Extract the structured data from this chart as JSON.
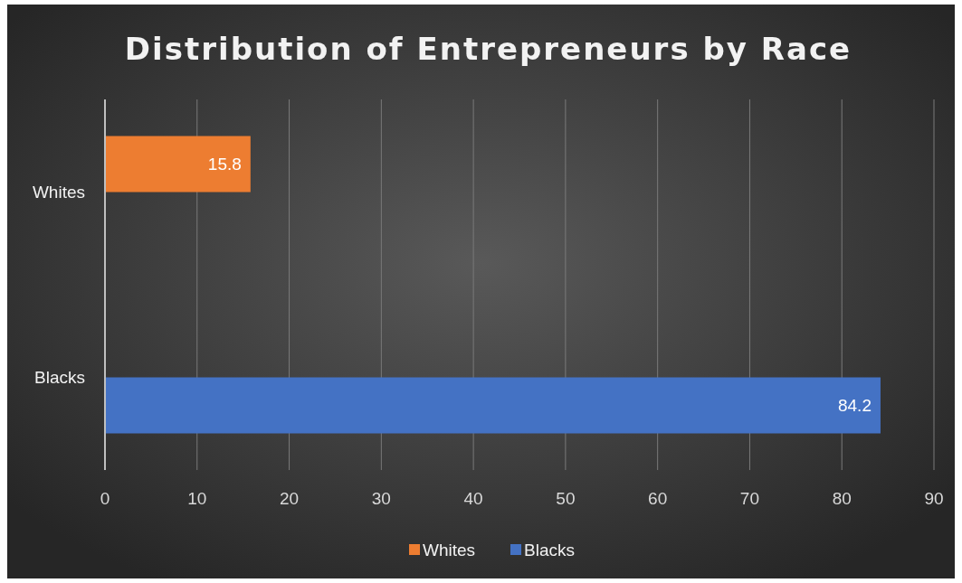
{
  "chart_data": {
    "type": "bar",
    "orientation": "horizontal",
    "title": "Distribution of Entrepreneurs by Race",
    "categories": [
      "Whites",
      "Blacks"
    ],
    "series": [
      {
        "name": "Whites",
        "color": "#ed7d31",
        "values": [
          15.8,
          null
        ]
      },
      {
        "name": "Blacks",
        "color": "#4472c4",
        "values": [
          null,
          84.2
        ]
      }
    ],
    "xlim": [
      0,
      90
    ],
    "xticks": [
      0,
      10,
      20,
      30,
      40,
      50,
      60,
      70,
      80,
      90
    ],
    "grid": "x",
    "legend": "bottom",
    "data_labels": true
  }
}
